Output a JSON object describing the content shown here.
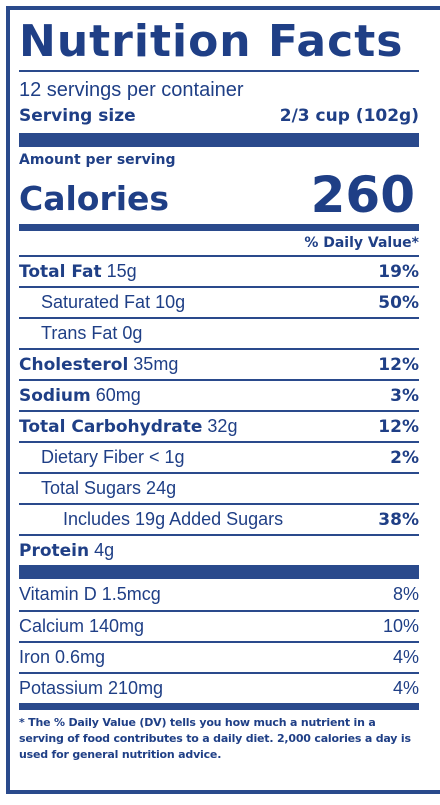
{
  "title": "Nutrition Facts",
  "servings_per_container": "12 servings per container",
  "serving_size": {
    "label": "Serving size",
    "value": "2/3 cup (102g)"
  },
  "amount_per_serving": "Amount per serving",
  "calories": {
    "label": "Calories",
    "value": "260"
  },
  "daily_value_header": "% Daily Value*",
  "nutrients": [
    {
      "name": "Total Fat",
      "amount": "15g",
      "dv": "19%"
    },
    {
      "name": "Saturated Fat 10g",
      "dv": "50%"
    },
    {
      "name": "Trans Fat 0g",
      "dv": ""
    },
    {
      "name": "Cholesterol",
      "amount": "35mg",
      "dv": "12%"
    },
    {
      "name": "Sodium",
      "amount": "60mg",
      "dv": "3%"
    },
    {
      "name": "Total Carbohydrate",
      "amount": "32g",
      "dv": "12%"
    },
    {
      "name": "Dietary Fiber < 1g",
      "dv": "2%"
    },
    {
      "name": "Total Sugars 24g",
      "dv": ""
    },
    {
      "name": "Includes 19g Added Sugars",
      "dv": "38%"
    },
    {
      "name": "Protein",
      "amount": "4g",
      "dv": ""
    }
  ],
  "vitamins": [
    {
      "name": "Vitamin D 1.5mcg",
      "dv": "8%"
    },
    {
      "name": "Calcium 140mg",
      "dv": "10%"
    },
    {
      "name": "Iron 0.6mg",
      "dv": "4%"
    },
    {
      "name": "Potassium 210mg",
      "dv": "4%"
    }
  ],
  "footnote": "* The % Daily Value (DV) tells you how much a nutrient in a serving of food contributes to a daily diet. 2,000 calories a day is used for general nutrition advice.",
  "colors": {
    "ink": "#1f3f86",
    "rule": "#2a4a8c",
    "background": "#ffffff"
  }
}
